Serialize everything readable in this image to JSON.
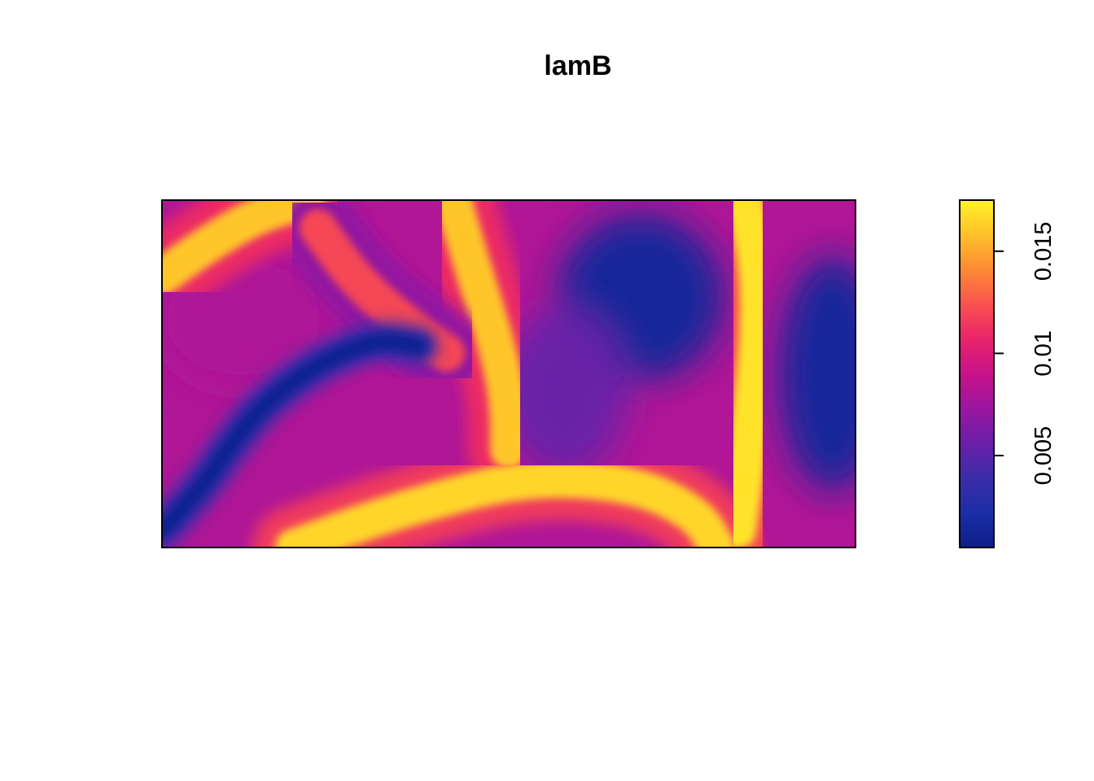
{
  "chart_data": {
    "type": "heatmap",
    "title": "lamB",
    "colorbar": {
      "range": [
        0.0005,
        0.0175
      ],
      "ticks": [
        0.005,
        0.01,
        0.015
      ],
      "tick_labels": [
        "0.005",
        "0.01",
        "0.015"
      ],
      "colors": [
        "#0d1d8a",
        "#1b2ea6",
        "#3a2da8",
        "#6a1fa8",
        "#9a16a0",
        "#c8128a",
        "#e8246a",
        "#f9524e",
        "#fd8a35",
        "#ffc02a",
        "#fff22c"
      ]
    },
    "ylim": [
      0,
      1
    ],
    "xlim": [
      0,
      2
    ],
    "features": [
      {
        "kind": "band",
        "label": "top-left ridge",
        "value": 0.016,
        "points": [
          [
            0,
            0.78
          ],
          [
            0.14,
            0.88
          ],
          [
            0.28,
            0.96
          ],
          [
            0.42,
            1.0
          ]
        ]
      },
      {
        "kind": "band",
        "label": "central ridge",
        "value": 0.016,
        "points": [
          [
            0.84,
            1.0
          ],
          [
            0.88,
            0.86
          ],
          [
            0.92,
            0.73
          ],
          [
            0.96,
            0.6
          ],
          [
            0.99,
            0.47
          ],
          [
            1.0,
            0.38
          ],
          [
            1.0,
            0.28
          ]
        ]
      },
      {
        "kind": "band",
        "label": "bottom ridge",
        "value": 0.0165,
        "points": [
          [
            0.38,
            0.0
          ],
          [
            0.6,
            0.08
          ],
          [
            0.8,
            0.14
          ],
          [
            1.0,
            0.19
          ],
          [
            1.2,
            0.2
          ],
          [
            1.4,
            0.17
          ],
          [
            1.55,
            0.09
          ],
          [
            1.6,
            0.0
          ]
        ]
      },
      {
        "kind": "band",
        "label": "right ridge",
        "value": 0.017,
        "points": [
          [
            1.68,
            1.0
          ],
          [
            1.72,
            0.8
          ],
          [
            1.72,
            0.6
          ],
          [
            1.7,
            0.4
          ],
          [
            1.68,
            0.2
          ],
          [
            1.66,
            0.05
          ]
        ]
      },
      {
        "kind": "band",
        "label": "upper middle ridge",
        "value": 0.012,
        "points": [
          [
            0.45,
            0.92
          ],
          [
            0.55,
            0.78
          ],
          [
            0.68,
            0.66
          ],
          [
            0.82,
            0.56
          ]
        ]
      },
      {
        "kind": "channel",
        "label": "left channel",
        "value": 0.001,
        "points": [
          [
            0.0,
            0.05
          ],
          [
            0.12,
            0.18
          ],
          [
            0.2,
            0.3
          ],
          [
            0.3,
            0.42
          ],
          [
            0.45,
            0.53
          ],
          [
            0.62,
            0.6
          ],
          [
            0.74,
            0.58
          ]
        ]
      },
      {
        "kind": "region",
        "label": "upper right low",
        "value": 0.0015,
        "points": [
          [
            1.28,
            0.82
          ],
          [
            1.48,
            0.62
          ]
        ]
      },
      {
        "kind": "region",
        "label": "far right low",
        "value": 0.0015,
        "points": [
          [
            1.95,
            0.7
          ],
          [
            1.92,
            0.3
          ]
        ]
      },
      {
        "kind": "region",
        "label": "center plateau",
        "value": 0.0055,
        "points": [
          [
            1.2,
            0.55
          ],
          [
            1.12,
            0.35
          ]
        ]
      },
      {
        "kind": "region",
        "label": "left interior",
        "value": 0.008,
        "points": [
          [
            0.12,
            0.6
          ],
          [
            0.35,
            0.72
          ]
        ]
      }
    ]
  }
}
